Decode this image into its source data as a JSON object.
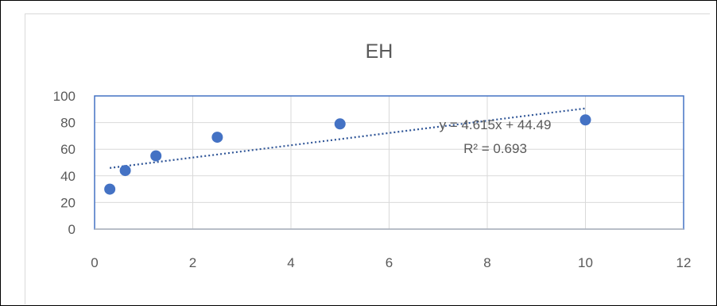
{
  "chart_data": {
    "type": "scatter",
    "title": "EH",
    "xlabel": "",
    "ylabel": "",
    "xlim": [
      0,
      12
    ],
    "ylim": [
      0,
      100
    ],
    "x_ticks": [
      0,
      2,
      4,
      6,
      8,
      10,
      12
    ],
    "y_ticks": [
      0,
      20,
      40,
      60,
      80,
      100
    ],
    "grid": true,
    "series": [
      {
        "points": [
          {
            "x": 0.31,
            "y": 30
          },
          {
            "x": 0.625,
            "y": 44
          },
          {
            "x": 1.25,
            "y": 55
          },
          {
            "x": 2.5,
            "y": 69
          },
          {
            "x": 5,
            "y": 79
          },
          {
            "x": 10,
            "y": 82
          }
        ],
        "color": "#4472c4"
      }
    ],
    "trendline": {
      "type": "linear",
      "slope": 4.615,
      "intercept": 44.49,
      "x_range": [
        0.31,
        10
      ],
      "color": "#2f5597",
      "style": "dotted",
      "equation_label": "y = 4.615x + 44.49",
      "r2_label": "R² = 0.693"
    },
    "plot_area_border_color": "#4472c4",
    "grid_color": "#d9d9d9"
  }
}
